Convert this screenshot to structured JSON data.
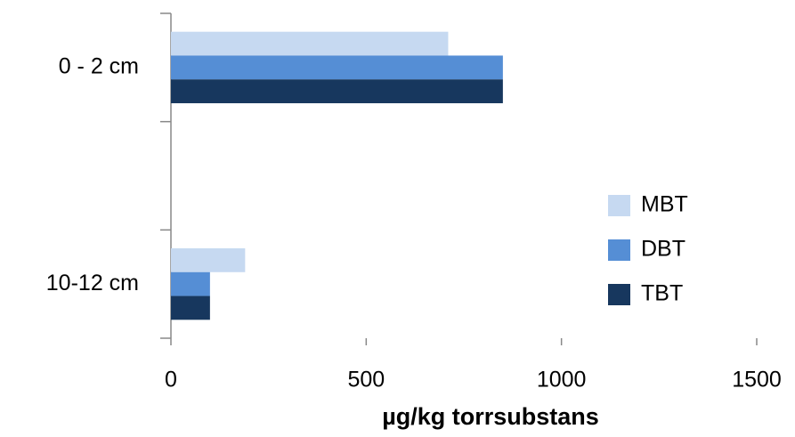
{
  "chart_data": {
    "type": "bar",
    "orientation": "horizontal",
    "categories": [
      "0 - 2 cm",
      null,
      "10-12 cm"
    ],
    "series": [
      {
        "name": "MBT",
        "color": "#c6d9f1",
        "values": [
          710,
          null,
          190
        ]
      },
      {
        "name": "DBT",
        "color": "#558ed5",
        "values": [
          850,
          null,
          100
        ]
      },
      {
        "name": "TBT",
        "color": "#17375e",
        "values": [
          850,
          null,
          100
        ]
      }
    ],
    "xlabel": "µg/kg torrsubstans",
    "xlim": [
      0,
      1500
    ],
    "xticks": [
      0,
      500,
      1000,
      1500
    ],
    "grid": false,
    "legend": "right"
  }
}
